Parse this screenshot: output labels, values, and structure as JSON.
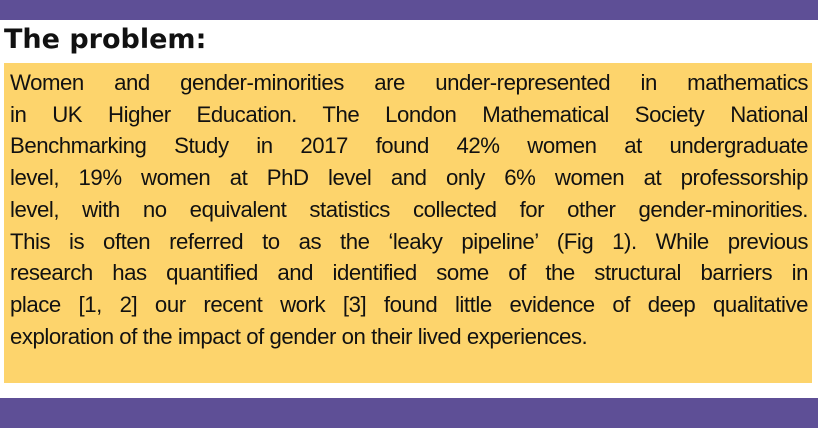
{
  "heading": "The problem:",
  "paragraph_lines": [
    "Women and gender-minorities are under-represented in mathematics",
    "in UK Higher Education. The London Mathematical Society National",
    "Benchmarking Study in 2017 found 42% women at undergraduate",
    "level, 19% women at PhD level and only 6% women at professorship",
    "level, with no equivalent statistics collected for other gender-minorities.",
    "This is often referred to as the ‘leaky pipeline’ (Fig 1). While previous",
    "research has quantified and identified some of the structural barriers in",
    "place [1, 2] our recent work [3] found little evidence of deep qualitative",
    "exploration of the impact of gender on their lived experiences."
  ],
  "colors": {
    "bar": "#5e4f96",
    "panel": "#fdd46c",
    "text": "#111111"
  }
}
